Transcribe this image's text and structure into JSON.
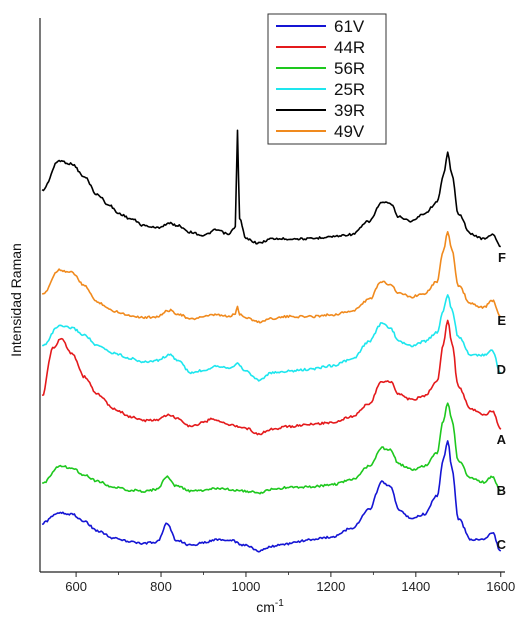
{
  "chart_data": {
    "type": "line",
    "xlabel": "cm",
    "xlabel_sup": "-1",
    "ylabel": "Intensidad Raman",
    "xlim": [
      515,
      1610
    ],
    "x_ticks": [
      600,
      800,
      1000,
      1200,
      1400,
      1600
    ],
    "y_ticks_shown": false,
    "grid": false,
    "legend_position": "top-center",
    "colors": {
      "61V": "#1515d4",
      "44R": "#e41a1c",
      "56R": "#1ec81e",
      "25R": "#1ee6ee",
      "39R": "#000000",
      "49V": "#f08a1e"
    },
    "legend": [
      "61V",
      "44R",
      "56R",
      "25R",
      "39R",
      "49V"
    ],
    "trace_labels": [
      "F",
      "E",
      "D",
      "A",
      "B",
      "C"
    ],
    "series": [
      {
        "name": "39R",
        "trace_label": "F",
        "points": [
          [
            520,
            0.66
          ],
          [
            560,
            0.93
          ],
          [
            590,
            0.9
          ],
          [
            620,
            0.78
          ],
          [
            650,
            0.62
          ],
          [
            680,
            0.52
          ],
          [
            700,
            0.45
          ],
          [
            730,
            0.4
          ],
          [
            760,
            0.34
          ],
          [
            790,
            0.32
          ],
          [
            820,
            0.36
          ],
          [
            840,
            0.34
          ],
          [
            870,
            0.28
          ],
          [
            900,
            0.25
          ],
          [
            930,
            0.3
          ],
          [
            960,
            0.26
          ],
          [
            975,
            0.33
          ],
          [
            980,
            1.2
          ],
          [
            985,
            0.4
          ],
          [
            1000,
            0.22
          ],
          [
            1030,
            0.18
          ],
          [
            1060,
            0.22
          ],
          [
            1100,
            0.22
          ],
          [
            1150,
            0.22
          ],
          [
            1200,
            0.24
          ],
          [
            1250,
            0.26
          ],
          [
            1290,
            0.38
          ],
          [
            1320,
            0.55
          ],
          [
            1340,
            0.54
          ],
          [
            1360,
            0.42
          ],
          [
            1390,
            0.38
          ],
          [
            1420,
            0.45
          ],
          [
            1450,
            0.55
          ],
          [
            1465,
            0.8
          ],
          [
            1475,
            1.0
          ],
          [
            1485,
            0.8
          ],
          [
            1500,
            0.45
          ],
          [
            1530,
            0.26
          ],
          [
            1560,
            0.22
          ],
          [
            1580,
            0.26
          ],
          [
            1600,
            0.15
          ]
        ]
      },
      {
        "name": "49V",
        "trace_label": "E",
        "points": [
          [
            520,
            0.3
          ],
          [
            560,
            0.58
          ],
          [
            590,
            0.55
          ],
          [
            620,
            0.4
          ],
          [
            650,
            0.22
          ],
          [
            690,
            0.12
          ],
          [
            730,
            0.07
          ],
          [
            760,
            0.05
          ],
          [
            790,
            0.06
          ],
          [
            820,
            0.13
          ],
          [
            840,
            0.09
          ],
          [
            870,
            0.03
          ],
          [
            900,
            0.06
          ],
          [
            930,
            0.08
          ],
          [
            960,
            0.06
          ],
          [
            975,
            0.09
          ],
          [
            980,
            0.17
          ],
          [
            985,
            0.09
          ],
          [
            1000,
            0.05
          ],
          [
            1030,
            0.0
          ],
          [
            1060,
            0.04
          ],
          [
            1100,
            0.06
          ],
          [
            1150,
            0.06
          ],
          [
            1200,
            0.08
          ],
          [
            1250,
            0.12
          ],
          [
            1290,
            0.25
          ],
          [
            1320,
            0.45
          ],
          [
            1340,
            0.42
          ],
          [
            1360,
            0.32
          ],
          [
            1390,
            0.28
          ],
          [
            1420,
            0.32
          ],
          [
            1450,
            0.45
          ],
          [
            1465,
            0.8
          ],
          [
            1475,
            1.0
          ],
          [
            1485,
            0.8
          ],
          [
            1500,
            0.4
          ],
          [
            1530,
            0.2
          ],
          [
            1560,
            0.16
          ],
          [
            1580,
            0.24
          ],
          [
            1600,
            0.06
          ]
        ]
      },
      {
        "name": "25R",
        "trace_label": "D",
        "points": [
          [
            520,
            0.4
          ],
          [
            560,
            0.62
          ],
          [
            590,
            0.6
          ],
          [
            620,
            0.52
          ],
          [
            650,
            0.4
          ],
          [
            690,
            0.32
          ],
          [
            730,
            0.26
          ],
          [
            760,
            0.22
          ],
          [
            790,
            0.24
          ],
          [
            820,
            0.3
          ],
          [
            840,
            0.24
          ],
          [
            870,
            0.1
          ],
          [
            900,
            0.13
          ],
          [
            930,
            0.18
          ],
          [
            960,
            0.16
          ],
          [
            980,
            0.2
          ],
          [
            1000,
            0.12
          ],
          [
            1030,
            0.02
          ],
          [
            1060,
            0.1
          ],
          [
            1100,
            0.12
          ],
          [
            1150,
            0.14
          ],
          [
            1200,
            0.18
          ],
          [
            1250,
            0.25
          ],
          [
            1290,
            0.45
          ],
          [
            1320,
            0.65
          ],
          [
            1340,
            0.6
          ],
          [
            1360,
            0.45
          ],
          [
            1390,
            0.4
          ],
          [
            1420,
            0.45
          ],
          [
            1450,
            0.55
          ],
          [
            1465,
            0.8
          ],
          [
            1475,
            0.98
          ],
          [
            1485,
            0.8
          ],
          [
            1500,
            0.5
          ],
          [
            1530,
            0.3
          ],
          [
            1560,
            0.3
          ],
          [
            1580,
            0.35
          ],
          [
            1600,
            0.1
          ]
        ]
      },
      {
        "name": "44R",
        "trace_label": "A",
        "points": [
          [
            520,
            0.4
          ],
          [
            545,
            0.9
          ],
          [
            565,
            1.0
          ],
          [
            590,
            0.85
          ],
          [
            620,
            0.6
          ],
          [
            650,
            0.42
          ],
          [
            690,
            0.26
          ],
          [
            730,
            0.18
          ],
          [
            760,
            0.14
          ],
          [
            790,
            0.15
          ],
          [
            820,
            0.2
          ],
          [
            840,
            0.16
          ],
          [
            870,
            0.08
          ],
          [
            900,
            0.12
          ],
          [
            920,
            0.16
          ],
          [
            960,
            0.1
          ],
          [
            1000,
            0.06
          ],
          [
            1030,
            0.0
          ],
          [
            1060,
            0.05
          ],
          [
            1100,
            0.08
          ],
          [
            1150,
            0.1
          ],
          [
            1200,
            0.12
          ],
          [
            1250,
            0.18
          ],
          [
            1290,
            0.32
          ],
          [
            1320,
            0.55
          ],
          [
            1340,
            0.55
          ],
          [
            1360,
            0.42
          ],
          [
            1390,
            0.36
          ],
          [
            1420,
            0.4
          ],
          [
            1450,
            0.55
          ],
          [
            1465,
            0.95
          ],
          [
            1475,
            1.2
          ],
          [
            1485,
            0.95
          ],
          [
            1500,
            0.5
          ],
          [
            1530,
            0.26
          ],
          [
            1560,
            0.2
          ],
          [
            1580,
            0.24
          ],
          [
            1600,
            0.05
          ]
        ]
      },
      {
        "name": "56R",
        "trace_label": "B",
        "points": [
          [
            520,
            0.1
          ],
          [
            560,
            0.3
          ],
          [
            590,
            0.28
          ],
          [
            620,
            0.2
          ],
          [
            650,
            0.13
          ],
          [
            690,
            0.06
          ],
          [
            730,
            0.03
          ],
          [
            760,
            0.02
          ],
          [
            790,
            0.04
          ],
          [
            815,
            0.18
          ],
          [
            835,
            0.08
          ],
          [
            870,
            0.02
          ],
          [
            900,
            0.03
          ],
          [
            930,
            0.05
          ],
          [
            960,
            0.04
          ],
          [
            1000,
            0.02
          ],
          [
            1030,
            0.0
          ],
          [
            1060,
            0.04
          ],
          [
            1100,
            0.06
          ],
          [
            1150,
            0.07
          ],
          [
            1200,
            0.09
          ],
          [
            1250,
            0.15
          ],
          [
            1290,
            0.3
          ],
          [
            1320,
            0.5
          ],
          [
            1340,
            0.48
          ],
          [
            1360,
            0.32
          ],
          [
            1390,
            0.26
          ],
          [
            1420,
            0.3
          ],
          [
            1450,
            0.45
          ],
          [
            1465,
            0.8
          ],
          [
            1475,
            1.0
          ],
          [
            1485,
            0.8
          ],
          [
            1500,
            0.36
          ],
          [
            1530,
            0.16
          ],
          [
            1560,
            0.12
          ],
          [
            1580,
            0.18
          ],
          [
            1600,
            0.02
          ]
        ]
      },
      {
        "name": "61V",
        "trace_label": "C",
        "points": [
          [
            520,
            0.3
          ],
          [
            560,
            0.42
          ],
          [
            590,
            0.4
          ],
          [
            620,
            0.32
          ],
          [
            650,
            0.22
          ],
          [
            690,
            0.14
          ],
          [
            730,
            0.1
          ],
          [
            760,
            0.08
          ],
          [
            790,
            0.1
          ],
          [
            815,
            0.3
          ],
          [
            835,
            0.12
          ],
          [
            870,
            0.06
          ],
          [
            900,
            0.09
          ],
          [
            930,
            0.12
          ],
          [
            960,
            0.12
          ],
          [
            1000,
            0.06
          ],
          [
            1030,
            0.0
          ],
          [
            1060,
            0.05
          ],
          [
            1100,
            0.08
          ],
          [
            1150,
            0.12
          ],
          [
            1200,
            0.15
          ],
          [
            1250,
            0.25
          ],
          [
            1290,
            0.45
          ],
          [
            1320,
            0.75
          ],
          [
            1340,
            0.7
          ],
          [
            1360,
            0.45
          ],
          [
            1390,
            0.35
          ],
          [
            1420,
            0.4
          ],
          [
            1450,
            0.6
          ],
          [
            1465,
            1.0
          ],
          [
            1475,
            1.2
          ],
          [
            1485,
            0.9
          ],
          [
            1500,
            0.35
          ],
          [
            1530,
            0.12
          ],
          [
            1560,
            0.12
          ],
          [
            1580,
            0.2
          ],
          [
            1600,
            0.0
          ]
        ]
      }
    ]
  }
}
